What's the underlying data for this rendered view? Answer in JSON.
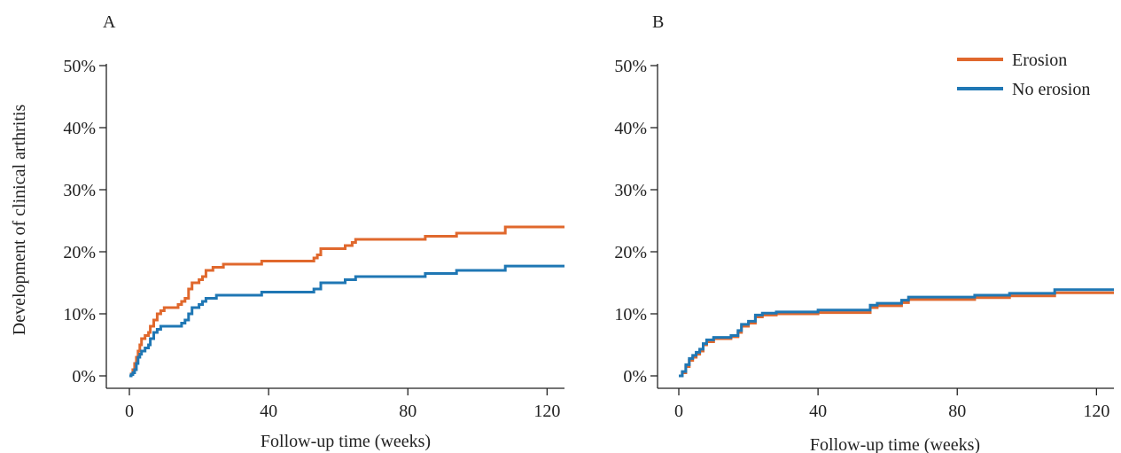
{
  "chart_data": [
    {
      "type": "line",
      "panel_label": "A",
      "title": "",
      "xlabel": "Follow-up time (weeks)",
      "ylabel": "Development of clinical arthritis",
      "xlim": [
        0,
        125
      ],
      "ylim": [
        0,
        50
      ],
      "x_ticks": [
        {
          "value": 0,
          "label": "0"
        },
        {
          "value": 40,
          "label": "40"
        },
        {
          "value": 80,
          "label": "80"
        },
        {
          "value": 120,
          "label": "120"
        }
      ],
      "y_ticks": [
        {
          "value": 0,
          "label": "0%"
        },
        {
          "value": 10,
          "label": "10%"
        },
        {
          "value": 20,
          "label": "20%"
        },
        {
          "value": 30,
          "label": "30%"
        },
        {
          "value": 40,
          "label": "40%"
        },
        {
          "value": 50,
          "label": "50%"
        }
      ],
      "series": [
        {
          "name": "Erosion",
          "color": "#e0682d",
          "step": true,
          "points": [
            [
              0,
              0
            ],
            [
              0.5,
              0.3
            ],
            [
              1,
              1
            ],
            [
              1.5,
              2
            ],
            [
              2,
              3
            ],
            [
              2.5,
              4
            ],
            [
              3,
              5
            ],
            [
              3.5,
              6
            ],
            [
              4.5,
              6.5
            ],
            [
              5.5,
              7
            ],
            [
              6,
              8
            ],
            [
              7,
              9
            ],
            [
              8,
              10
            ],
            [
              9,
              10.5
            ],
            [
              10,
              11
            ],
            [
              13,
              11
            ],
            [
              14,
              11.5
            ],
            [
              15,
              12
            ],
            [
              16,
              12.5
            ],
            [
              17,
              14
            ],
            [
              18,
              15
            ],
            [
              20,
              15.5
            ],
            [
              21,
              16
            ],
            [
              22,
              17
            ],
            [
              24,
              17.5
            ],
            [
              27,
              18
            ],
            [
              37,
              18
            ],
            [
              38,
              18.5
            ],
            [
              52,
              18.5
            ],
            [
              53,
              19
            ],
            [
              54,
              19.5
            ],
            [
              55,
              20.5
            ],
            [
              61,
              20.5
            ],
            [
              62,
              21
            ],
            [
              64,
              21.5
            ],
            [
              65,
              22
            ],
            [
              84,
              22
            ],
            [
              85,
              22.5
            ],
            [
              93,
              22.5
            ],
            [
              94,
              23
            ],
            [
              107,
              23
            ],
            [
              108,
              24
            ],
            [
              125,
              24
            ]
          ]
        },
        {
          "name": "No erosion",
          "color": "#1f77b4",
          "step": true,
          "points": [
            [
              0,
              0
            ],
            [
              0.5,
              0.2
            ],
            [
              1,
              0.5
            ],
            [
              1.5,
              1
            ],
            [
              2,
              2
            ],
            [
              2.5,
              3
            ],
            [
              3,
              3.5
            ],
            [
              3.5,
              4
            ],
            [
              4.5,
              4.5
            ],
            [
              5.5,
              5
            ],
            [
              6,
              6
            ],
            [
              7,
              7
            ],
            [
              8,
              7.5
            ],
            [
              9,
              8
            ],
            [
              14,
              8
            ],
            [
              15,
              8.5
            ],
            [
              16,
              9
            ],
            [
              17,
              10
            ],
            [
              18,
              11
            ],
            [
              20,
              11.5
            ],
            [
              21,
              12
            ],
            [
              22,
              12.5
            ],
            [
              25,
              13
            ],
            [
              36,
              13
            ],
            [
              38,
              13.5
            ],
            [
              51,
              13.5
            ],
            [
              53,
              14
            ],
            [
              55,
              15
            ],
            [
              61,
              15
            ],
            [
              62,
              15.5
            ],
            [
              65,
              16
            ],
            [
              84,
              16
            ],
            [
              85,
              16.5
            ],
            [
              93,
              16.5
            ],
            [
              94,
              17
            ],
            [
              107,
              17
            ],
            [
              108,
              17.7
            ],
            [
              125,
              17.7
            ]
          ]
        }
      ]
    },
    {
      "type": "line",
      "panel_label": "B",
      "title": "",
      "xlabel": "Follow-up time (weeks)",
      "ylabel": "",
      "xlim": [
        0,
        125
      ],
      "ylim": [
        0,
        50
      ],
      "x_ticks": [
        {
          "value": 0,
          "label": "0"
        },
        {
          "value": 40,
          "label": "40"
        },
        {
          "value": 80,
          "label": "80"
        },
        {
          "value": 120,
          "label": "120"
        }
      ],
      "y_ticks": [
        {
          "value": 0,
          "label": "0%"
        },
        {
          "value": 10,
          "label": "10%"
        },
        {
          "value": 20,
          "label": "20%"
        },
        {
          "value": 30,
          "label": "30%"
        },
        {
          "value": 40,
          "label": "40%"
        },
        {
          "value": 50,
          "label": "50%"
        }
      ],
      "legend": {
        "placement": "top-right",
        "entries": [
          "Erosion",
          "No erosion"
        ]
      },
      "series": [
        {
          "name": "Erosion",
          "color": "#e0682d",
          "step": true,
          "points": [
            [
              0,
              0
            ],
            [
              1,
              0.5
            ],
            [
              2,
              1.5
            ],
            [
              3,
              2.5
            ],
            [
              4,
              3
            ],
            [
              5,
              3.5
            ],
            [
              6,
              4
            ],
            [
              7,
              5
            ],
            [
              8,
              5.5
            ],
            [
              10,
              6
            ],
            [
              14,
              6
            ],
            [
              15,
              6.3
            ],
            [
              17,
              7
            ],
            [
              18,
              8
            ],
            [
              20,
              8.5
            ],
            [
              22,
              9.5
            ],
            [
              24,
              9.8
            ],
            [
              28,
              10
            ],
            [
              39,
              10
            ],
            [
              40,
              10.2
            ],
            [
              54,
              10.2
            ],
            [
              55,
              11
            ],
            [
              57,
              11.3
            ],
            [
              63,
              11.3
            ],
            [
              64,
              11.8
            ],
            [
              66,
              12.3
            ],
            [
              84,
              12.3
            ],
            [
              85,
              12.6
            ],
            [
              94,
              12.6
            ],
            [
              95,
              12.9
            ],
            [
              107,
              12.9
            ],
            [
              108,
              13.4
            ],
            [
              125,
              13.4
            ]
          ]
        },
        {
          "name": "No erosion",
          "color": "#1f77b4",
          "step": true,
          "points": [
            [
              0,
              0
            ],
            [
              1,
              0.7
            ],
            [
              2,
              1.8
            ],
            [
              3,
              2.8
            ],
            [
              4,
              3.3
            ],
            [
              5,
              3.8
            ],
            [
              6,
              4.3
            ],
            [
              7,
              5.2
            ],
            [
              8,
              5.8
            ],
            [
              10,
              6.2
            ],
            [
              14,
              6.2
            ],
            [
              15,
              6.5
            ],
            [
              17,
              7.3
            ],
            [
              18,
              8.3
            ],
            [
              20,
              8.8
            ],
            [
              22,
              9.8
            ],
            [
              24,
              10.1
            ],
            [
              28,
              10.3
            ],
            [
              39,
              10.3
            ],
            [
              40,
              10.6
            ],
            [
              54,
              10.6
            ],
            [
              55,
              11.4
            ],
            [
              57,
              11.7
            ],
            [
              63,
              11.7
            ],
            [
              64,
              12.2
            ],
            [
              66,
              12.7
            ],
            [
              84,
              12.7
            ],
            [
              85,
              13
            ],
            [
              94,
              13
            ],
            [
              95,
              13.3
            ],
            [
              107,
              13.3
            ],
            [
              108,
              13.9
            ],
            [
              125,
              13.9
            ]
          ]
        }
      ]
    }
  ]
}
